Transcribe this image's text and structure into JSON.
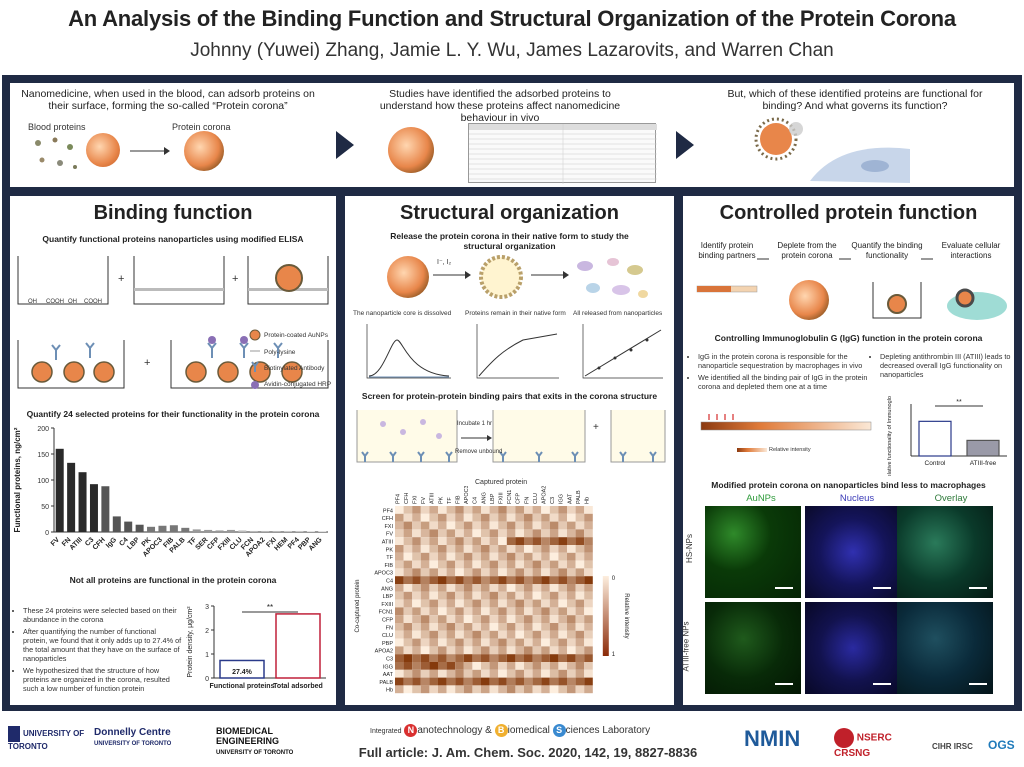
{
  "header": {
    "title": "An Analysis of the Binding Function and Structural Organization of the Protein Corona",
    "authors": "Johnny (Yuwei) Zhang, Jamie L. Y. Wu, James Lazarovits, and Warren Chan"
  },
  "intro": {
    "p1": "Nanomedicine, when used in the blood, can adsorb proteins on their surface, forming the so-called “Protein corona”",
    "blood_proteins": "Blood proteins",
    "protein_corona": "Protein corona",
    "p2": "Studies have identified the adsorbed proteins to understand how these proteins affect nanomedicine behaviour in vivo",
    "p3": "But, which of these identified proteins are functional for binding? And what governs its function?"
  },
  "binding": {
    "heading": "Binding function",
    "subtitle": "Quantify functional proteins nanoparticles using modified ELISA",
    "legend": [
      "Protein-coated AuNPs",
      "Poly-lysine",
      "Biotinylated Antibody",
      "Avidin-conjugated HRP"
    ],
    "cooh": [
      "OH",
      "COOH",
      "OH",
      "COOH"
    ],
    "chart_title": "Quantify 24 selected proteins for their functionality in the protein corona",
    "chart_caption": "Not all proteins are functional in the protein corona",
    "bullets": [
      "These 24 proteins were selected based on their abundance in the corona",
      "After quantifying the number of functional protein, we found that it only adds up to 27.4% of the total amount that they have on the surface of nanoparticles",
      "We hypothesized that the structure of how proteins are organized in the corona, resulted such a low number of function protein"
    ]
  },
  "structural": {
    "heading": "Structural organization",
    "subtitle": "Release the protein corona in their native form to study the structural organization",
    "reagents": "I⁻, I₂",
    "bullets": [
      "The nanoparticle core is dissolved",
      "Proteins remain in their native form",
      "All released from nanoparticles"
    ],
    "screen_title": "Screen for protein-protein binding pairs that exits in the corona structure",
    "incubate": "Incubate 1 hr",
    "remove": "Remove unbound",
    "captured_label": "Captured protein",
    "co_captured_label": "Co-captured protein",
    "relative_intensity": "Relative intensity",
    "scale_0": "0",
    "scale_1": "1"
  },
  "controlled": {
    "heading": "Controlled protein function",
    "steps": [
      "Identify protein binding partners",
      "Deplete from the protein corona",
      "Quantify the binding functionality",
      "Evaluate cellular interactions"
    ],
    "igg_title": "Controlling Immunoglobulin G (IgG) function in the protein corona",
    "bullets_left": [
      "IgG in the protein corona is responsible for the nanoparticle sequestration by macrophages in vivo",
      "We identified all the binding pair of IgG in the protein corona and depleted them one at a time"
    ],
    "bullets_right": [
      "Depleting antithrombin III (ATIII) leads to decreased overall IgG functionality on nanoparticles"
    ],
    "relative_intensity": "Relative intensity",
    "bar_ylabel": "Relative functionality of Immunoglobulin G",
    "sig": "**",
    "micro_title": "Modified protein corona on nanoparticles bind less to macrophages",
    "micro_cols": [
      "AuNPs",
      "Nucleus",
      "Overlay"
    ],
    "micro_rows": [
      "HS-NPs",
      "ATIII-free NPs"
    ],
    "igg_bar_cats": [
      "Control",
      "ATIII-free"
    ]
  },
  "footer": {
    "uoft": "UNIVERSITY OF TORONTO",
    "donnelly": "Donnelly Centre",
    "donnelly_sub": "UNIVERSITY OF TORONTO",
    "bme": "BIOMEDICAL ENGINEERING",
    "bme_sub": "UNIVERSITY OF TORONTO",
    "integrated": "Integrated",
    "lab_n": "N",
    "lab_n_rest": "anotechnology &",
    "lab_b": "B",
    "lab_b_rest": "iomedical",
    "lab_s": "S",
    "lab_s_rest": "ciences Laboratory",
    "article": "Full article: J. Am. Chem. Soc. 2020, 142, 19, 8827-8836",
    "nmin": "NMIN",
    "nserc": "NSERC CRSNG",
    "cihr": "CIHR IRSC",
    "ogs": "OGS"
  },
  "chart_data": [
    {
      "type": "bar",
      "ylabel": "Functional proteins, ng/cm²",
      "ylim": [
        0,
        200
      ],
      "yticks": [
        0,
        50,
        100,
        150,
        200
      ],
      "categories": [
        "FV",
        "FN",
        "ATIII",
        "C3",
        "CFH",
        "IgG",
        "C4",
        "LBP",
        "PK",
        "APOC3",
        "FIB",
        "PALB",
        "TF",
        "SER",
        "CFP",
        "FXIII",
        "CLU",
        "FCN",
        "APOA2",
        "FXI",
        "HEM",
        "PF4",
        "PBP",
        "ANG"
      ],
      "values": [
        160,
        133,
        115,
        92,
        88,
        30,
        20,
        14,
        10,
        12,
        13,
        8,
        5,
        4,
        3,
        4,
        3,
        2,
        2,
        2,
        2,
        2,
        1,
        1
      ]
    },
    {
      "type": "bar",
      "ylabel": "Protein density, μg/cm²",
      "ylim": [
        0,
        3
      ],
      "yticks": [
        0,
        1,
        2,
        3
      ],
      "categories": [
        "Functional proteins",
        "Total adsorbed"
      ],
      "values": [
        0.73,
        2.67
      ],
      "annotations": [
        "27.4%",
        "**"
      ]
    },
    {
      "type": "bar",
      "ylabel": "Relative functionality of Immunoglobulin G",
      "categories": [
        "Control",
        "ATIII-free"
      ],
      "values": [
        1.0,
        0.45
      ],
      "ylim": [
        0,
        1.5
      ]
    }
  ],
  "heatmap": {
    "cols": [
      "PF4",
      "CFH",
      "FXI",
      "FV",
      "ATIII",
      "PK",
      "TF",
      "FIB",
      "APOC3",
      "C4",
      "ANG",
      "LBP",
      "FXIII",
      "FCN1",
      "CFP",
      "FN",
      "CLU",
      "APOA2",
      "C3",
      "IGG",
      "AAT",
      "PALB",
      "Hb"
    ],
    "rows": [
      "PF4",
      "CFH",
      "FXI",
      "FV",
      "ATIII",
      "PK",
      "TF",
      "FIB",
      "APOC3",
      "C4",
      "ANG",
      "LBP",
      "FXIII",
      "FCN1",
      "CFP",
      "FN",
      "CLU",
      "PBP",
      "APOA2",
      "C3",
      "IGG",
      "AAT",
      "PALB",
      "Hb"
    ]
  }
}
